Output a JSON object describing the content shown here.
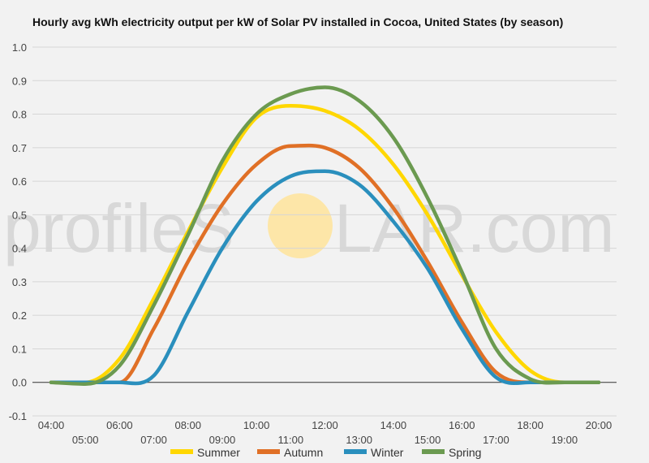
{
  "chart_data": {
    "type": "line",
    "title": "Hourly avg kWh electricity output per kW of Solar PV installed in Cocoa, United States (by season)",
    "xlabel": "",
    "ylabel": "",
    "ylim": [
      -0.1,
      1.0
    ],
    "yticks": [
      "-0.1",
      "0.0",
      "0.1",
      "0.2",
      "0.3",
      "0.4",
      "0.5",
      "0.6",
      "0.7",
      "0.8",
      "0.9",
      "1.0"
    ],
    "categories": [
      "04:00",
      "05:00",
      "06:00",
      "07:00",
      "08:00",
      "09:00",
      "10:00",
      "11:00",
      "12:00",
      "13:00",
      "14:00",
      "15:00",
      "16:00",
      "17:00",
      "18:00",
      "19:00",
      "20:00"
    ],
    "grid": true,
    "legend_position": "bottom",
    "series": [
      {
        "name": "Summer",
        "color": "#ffd700",
        "values": [
          0.0,
          0.0,
          0.07,
          0.25,
          0.45,
          0.64,
          0.79,
          0.825,
          0.81,
          0.755,
          0.65,
          0.5,
          0.32,
          0.15,
          0.035,
          0.0,
          0.0
        ]
      },
      {
        "name": "Autumn",
        "color": "#e07026",
        "values": [
          0.0,
          0.0,
          0.0,
          0.16,
          0.36,
          0.53,
          0.65,
          0.705,
          0.7,
          0.64,
          0.52,
          0.36,
          0.18,
          0.03,
          0.0,
          0.0,
          0.0
        ]
      },
      {
        "name": "Winter",
        "color": "#2a8fbd",
        "values": [
          0.0,
          0.0,
          0.0,
          0.02,
          0.21,
          0.4,
          0.54,
          0.615,
          0.63,
          0.59,
          0.48,
          0.34,
          0.16,
          0.015,
          0.0,
          0.0,
          0.0
        ]
      },
      {
        "name": "Spring",
        "color": "#6b9a50",
        "values": [
          0.0,
          -0.005,
          0.05,
          0.23,
          0.44,
          0.66,
          0.8,
          0.86,
          0.88,
          0.84,
          0.73,
          0.55,
          0.33,
          0.1,
          0.01,
          0.0,
          0.0
        ]
      }
    ]
  },
  "watermark": {
    "text_left": "profileS",
    "text_right": "LAR.com",
    "sun_color": "#fde6a8"
  }
}
